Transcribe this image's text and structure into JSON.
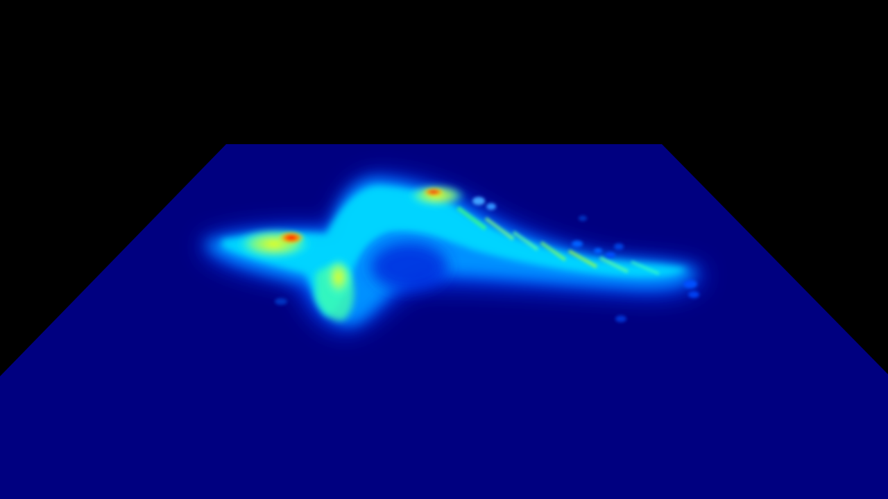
{
  "scene": {
    "kind": "3d-terrain-heightmap",
    "background_color": "#000000",
    "plane_color": "#000080",
    "colormap": "jet",
    "colormap_stops": [
      "#00007f",
      "#0000ff",
      "#0080ff",
      "#00ffff",
      "#80ff80",
      "#ffff00",
      "#ff8000",
      "#ff0000",
      "#7f0000"
    ]
  }
}
